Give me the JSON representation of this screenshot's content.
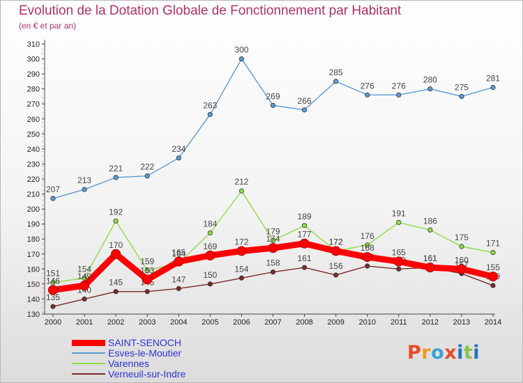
{
  "chart_data": {
    "type": "line",
    "title": "Evolution de la Dotation Globale de Fonctionnement par Habitant",
    "subtitle": "(en € et par an)",
    "xlabel": "",
    "ylabel": "",
    "categories": [
      "2000",
      "2001",
      "2002",
      "2003",
      "2004",
      "2005",
      "2006",
      "2007",
      "2008",
      "2009",
      "2010",
      "2011",
      "2012",
      "2013",
      "2014"
    ],
    "ylim": [
      130,
      310
    ],
    "ytick_step": 10,
    "grid": false,
    "legend_position": "bottom-left",
    "series": [
      {
        "name": "SAINT-SENOCH",
        "color": "#ff0000",
        "values": [
          146,
          149,
          170,
          153,
          165,
          169,
          172,
          174,
          177,
          172,
          168,
          165,
          161,
          160,
          155
        ]
      },
      {
        "name": "Esves-le-Moutier",
        "color": "#5b9bd5",
        "values": [
          207,
          213,
          221,
          222,
          234,
          263,
          300,
          269,
          266,
          285,
          276,
          276,
          280,
          275,
          281
        ]
      },
      {
        "name": "Varennes",
        "color": "#8fdc45",
        "values": [
          151,
          154,
          192,
          159,
          164,
          184,
          212,
          179,
          189,
          172,
          176,
          191,
          186,
          175,
          171
        ]
      },
      {
        "name": "Verneuil-sur-Indre",
        "color": "#7a2a2a",
        "values": [
          135,
          140,
          145,
          145,
          147,
          150,
          154,
          158,
          161,
          156,
          162,
          160,
          161,
          157,
          149
        ]
      }
    ]
  },
  "logo": {
    "text": "Proxiti",
    "colors": [
      "#e84a2a",
      "#f09a1a",
      "#3aa0d8",
      "#e84a2a",
      "#2070c8",
      "#8bc34a",
      "#2070c8"
    ]
  }
}
